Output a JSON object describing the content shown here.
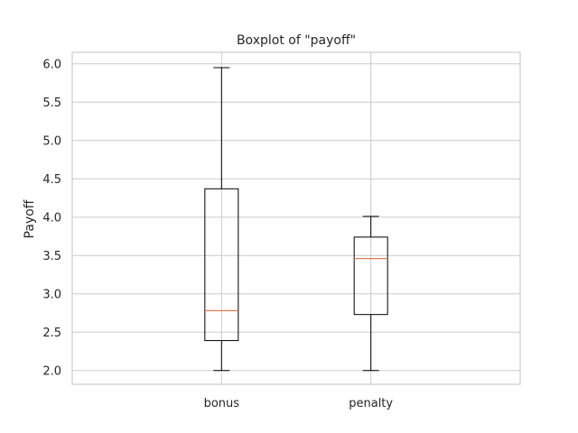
{
  "chart_data": {
    "type": "boxplot",
    "title": "Boxplot of \"payoff\"",
    "xlabel": "",
    "ylabel": "Payoff",
    "ylim": [
      1.82,
      6.15
    ],
    "yticks": [
      "2.0",
      "2.5",
      "3.0",
      "3.5",
      "4.0",
      "4.5",
      "5.0",
      "5.5",
      "6.0"
    ],
    "categories": [
      "bonus",
      "penalty"
    ],
    "boxes": [
      {
        "label": "bonus",
        "whisker_low": 2.0,
        "q1": 2.39,
        "median": 2.78,
        "q3": 4.37,
        "whisker_high": 5.95
      },
      {
        "label": "penalty",
        "whisker_low": 2.0,
        "q1": 2.73,
        "median": 3.46,
        "q3": 3.74,
        "whisker_high": 4.01
      }
    ],
    "grid": true,
    "colors": {
      "box": "#000000",
      "median": "#e07b54",
      "grid": "#cccccc",
      "text": "#262626"
    }
  }
}
